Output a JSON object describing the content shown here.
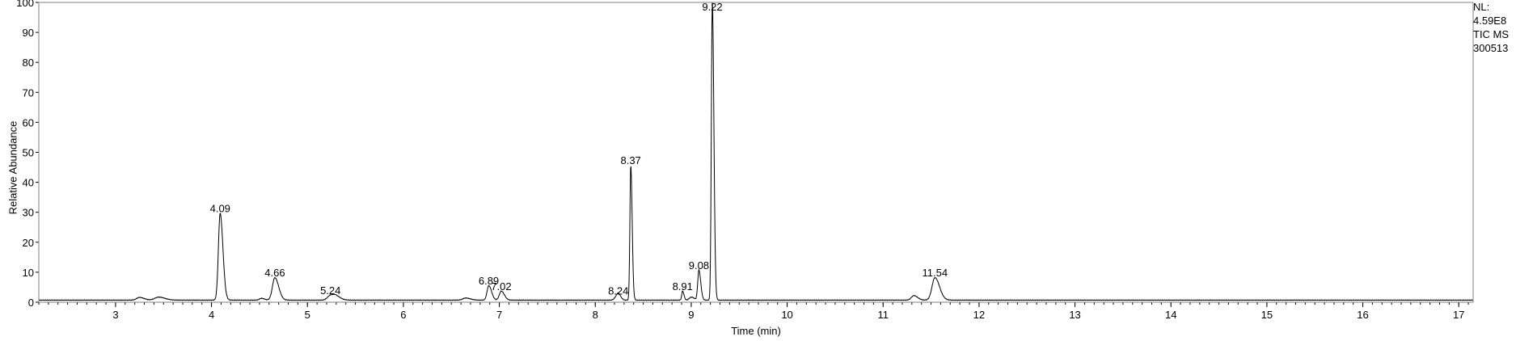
{
  "chart_data": {
    "type": "line",
    "xlabel": "Time (min)",
    "ylabel": "Relative Abundance",
    "xlim": [
      2.2,
      17.15
    ],
    "ylim": [
      0,
      100
    ],
    "x_ticks": [
      3,
      4,
      5,
      6,
      7,
      8,
      9,
      10,
      11,
      12,
      13,
      14,
      15,
      16,
      17
    ],
    "y_ticks": [
      0,
      10,
      20,
      30,
      40,
      50,
      60,
      70,
      80,
      90,
      100
    ],
    "info": {
      "nl_label": "NL:",
      "nl_value": "4.59E8",
      "scan_filter": "TIC  MS",
      "sample": "300513"
    },
    "peaks": [
      {
        "rt": 4.09,
        "label": "4.09",
        "height": 29,
        "width": 0.018
      },
      {
        "rt": 4.66,
        "label": "4.66",
        "height": 7.5,
        "width": 0.025
      },
      {
        "rt": 5.24,
        "label": "5.24",
        "height": 1.6,
        "width": 0.03
      },
      {
        "rt": 6.89,
        "label": "6.89",
        "height": 4.8,
        "width": 0.018
      },
      {
        "rt": 7.02,
        "label": "7.02",
        "height": 3.0,
        "width": 0.02
      },
      {
        "rt": 8.24,
        "label": "8.24",
        "height": 1.5,
        "width": 0.015
      },
      {
        "rt": 8.37,
        "label": "8.37",
        "height": 45,
        "width": 0.009
      },
      {
        "rt": 8.91,
        "label": "8.91",
        "height": 3.0,
        "width": 0.009
      },
      {
        "rt": 9.08,
        "label": "9.08",
        "height": 10,
        "width": 0.012
      },
      {
        "rt": 9.22,
        "label": "9.22",
        "height": 100,
        "width": 0.01
      },
      {
        "rt": 11.54,
        "label": "11.54",
        "height": 7.5,
        "width": 0.03
      }
    ],
    "minor_peaks": [
      {
        "rt": 3.25,
        "height": 0.9,
        "width": 0.03
      },
      {
        "rt": 3.45,
        "height": 1.0,
        "width": 0.04
      },
      {
        "rt": 4.52,
        "height": 0.6,
        "width": 0.02
      },
      {
        "rt": 5.3,
        "height": 1.0,
        "width": 0.03
      },
      {
        "rt": 6.65,
        "height": 0.7,
        "width": 0.03
      },
      {
        "rt": 8.22,
        "height": 1.1,
        "width": 0.02
      },
      {
        "rt": 9.0,
        "height": 1.0,
        "width": 0.02
      },
      {
        "rt": 11.32,
        "height": 1.5,
        "width": 0.025
      }
    ],
    "baseline": 0.7
  }
}
